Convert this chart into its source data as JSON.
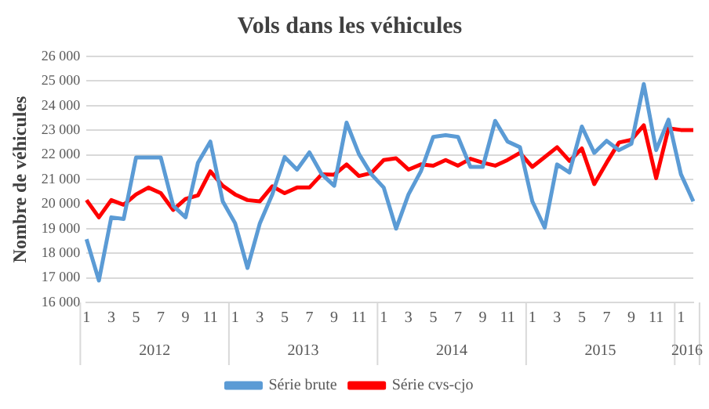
{
  "chart_data": {
    "type": "line",
    "title": "Vols dans les véhicules",
    "ylabel": "Nombre de véhicules",
    "categories": [
      "1",
      null,
      "3",
      null,
      "5",
      null,
      "7",
      null,
      "9",
      null,
      "11",
      null,
      "1",
      null,
      "3",
      null,
      "5",
      null,
      "7",
      null,
      "9",
      null,
      "11",
      null,
      "1",
      null,
      "3",
      null,
      "5",
      null,
      "7",
      null,
      "9",
      null,
      "11",
      null,
      "1",
      null,
      "3",
      null,
      "5",
      null,
      "7",
      null,
      "9",
      null,
      "11",
      null,
      "1",
      null
    ],
    "annotations": [
      "2012",
      "2013",
      "2014",
      "2015",
      "2016"
    ],
    "series": [
      {
        "name": "Série brute",
        "color": "#5b9bd5",
        "values": [
          18570,
          16890,
          19460,
          19390,
          21890,
          21890,
          21890,
          19930,
          19460,
          21680,
          22540,
          20110,
          19220,
          17400,
          19220,
          20390,
          21910,
          21400,
          22100,
          21210,
          20740,
          23310,
          22030,
          21210,
          20670,
          19000,
          20390,
          21330,
          22730,
          22800,
          22730,
          21510,
          21510,
          23380,
          22540,
          22310,
          20110,
          19040,
          21610,
          21280,
          23150,
          22080,
          22570,
          22190,
          22450,
          24880,
          22190,
          23430,
          21210,
          20110
        ]
      },
      {
        "name": "Série cvs-cjo",
        "color": "#ff0000",
        "values": [
          20160,
          19460,
          20160,
          19970,
          20390,
          20670,
          20440,
          19760,
          20210,
          20350,
          21330,
          20740,
          20390,
          20160,
          20110,
          20720,
          20440,
          20670,
          20670,
          21210,
          21190,
          21610,
          21140,
          21260,
          21790,
          21860,
          21400,
          21610,
          21560,
          21790,
          21560,
          21840,
          21680,
          21560,
          21790,
          22080,
          21510,
          21910,
          22310,
          21750,
          22260,
          20810,
          21680,
          22500,
          22610,
          23200,
          21050,
          23080,
          23010,
          23010
        ]
      }
    ],
    "ylim": [
      16000,
      26000
    ],
    "yticks": [
      {
        "value": 16000,
        "label": "16 000"
      },
      {
        "value": 17000,
        "label": "17 000"
      },
      {
        "value": 18000,
        "label": "18 000"
      },
      {
        "value": 19000,
        "label": "19 000"
      },
      {
        "value": 20000,
        "label": "20 000"
      },
      {
        "value": 21000,
        "label": "21 000"
      },
      {
        "value": 22000,
        "label": "22 000"
      },
      {
        "value": 23000,
        "label": "23 000"
      },
      {
        "value": 24000,
        "label": "24 000"
      },
      {
        "value": 25000,
        "label": "25 000"
      },
      {
        "value": 26000,
        "label": "26 000"
      }
    ],
    "grid": "y",
    "legend": "bottom",
    "marker": "none",
    "line_style": "solid"
  }
}
